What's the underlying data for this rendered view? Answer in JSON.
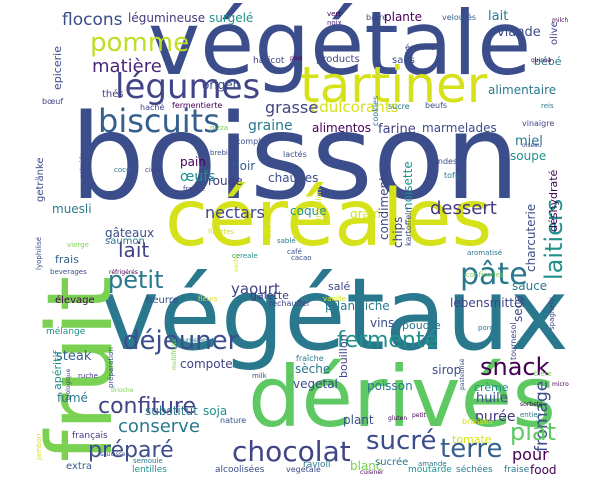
{
  "palette": {
    "navy": "#3b4d8a",
    "indigo": "#414487",
    "blue": "#355f8d",
    "teal": "#2a788e",
    "cyan": "#21918c",
    "green": "#22a884",
    "lime": "#7ad151",
    "yellow": "#d5e21a",
    "purple": "#482878",
    "dark": "#440154"
  },
  "words": {
    "boisson": "boisson",
    "vegetale": "végétale",
    "vegetaux": "végétaux",
    "cereales": "céréales",
    "derives": "dérivés",
    "fruit": "fruit",
    "tartiner": "tartiner",
    "legumes": "légumes",
    "biscuits": "biscuits",
    "pomme": "pomme",
    "matiere": "matière",
    "flocons": "flocons",
    "legumineuse": "légumineuse",
    "surgele": "surgelé",
    "vert": "vert",
    "noix": "noix",
    "barre": "barre",
    "plante": "plante",
    "veloutes": "veloutés",
    "lait_top": "lait",
    "viande": "viande",
    "olive": "olive",
    "bebe": "bébé",
    "alimentaire": "alimentaire",
    "edulcorants": "édulcorants",
    "grasse": "grasse",
    "graine": "graine",
    "alimentos": "alimentos",
    "farine": "farine",
    "marmelades": "marmelades",
    "miel": "miel",
    "soupe": "soupe",
    "petit": "petit",
    "lait": "lait",
    "nectars": "nectars",
    "dessert": "dessert",
    "laitiers": "laitiers",
    "pate": "pâte",
    "snack": "snack",
    "dejeuner": "déjeuner",
    "fermente": "fermenté",
    "fromage": "fromage",
    "confiture": "confiture",
    "conserve": "conserve",
    "prepare": "préparé",
    "chocolat": "chocolat",
    "sucre": "sucré",
    "terre": "terre",
    "plat": "plat",
    "pour": "pour",
    "yaourt": "yaourt",
    "pflanzliche": "pflanzliche",
    "sauce": "sauce",
    "charcuterie": "charcuterie",
    "lebensmittel": "lebensmittel",
    "gateaux": "gâteaux",
    "saumon": "saumon",
    "muesli": "muesli",
    "chaudes": "chaudes",
    "coque": "coque",
    "grain": "grain",
    "noisette": "noisette",
    "chips": "chips",
    "condiments": "condiments",
    "rouge": "rouge",
    "oeufs": "œufs",
    "noir": "noir",
    "pain": "pain",
    "origen": "origen",
    "thes": "thés",
    "epicerie": "epicerie",
    "steak": "steak",
    "compote": "compote",
    "soja": "soja",
    "substitut": "substitut",
    "fume": "fumé",
    "aperitif": "apéritif",
    "poisson": "poisson",
    "vegetal": "vegetal",
    "seche": "sèche",
    "huile": "huile",
    "puree": "purée",
    "creme": "crème",
    "sirop": "sirop",
    "secs": "secs",
    "deshydrate": "déshydraté",
    "bouillon": "bouillon",
    "vins": "vins",
    "poudre": "poudre",
    "sale": "salé",
    "galette": "galette",
    "beurre": "beurre",
    "elevage": "élevage",
    "frais": "frais",
    "getranke": "getränke",
    "plant": "plant",
    "blanc": "blanc",
    "tomate": "tomate",
    "food": "food",
    "fraise": "fraise",
    "ravioli": "ravioli",
    "lentilles": "lentilles",
    "extra": "extra",
    "francais": "français",
    "melange": "mélange",
    "mois": "mois",
    "sans": "sans",
    "ecreme": "écrémé",
    "haricot": "haricot",
    "products": "products",
    "cookies": "cookies",
    "boeuf": "bœuf",
    "hache": "haché",
    "fermentierte": "fermentierte",
    "sucre_small": "sucre",
    "beufs": "beufs",
    "complet": "complet",
    "cidre": "cidre",
    "coco": "coco",
    "france": "france",
    "brebis": "brebis",
    "lactes": "lactés",
    "pizza": "pizza",
    "ondes": "ondes",
    "tofu": "tofu",
    "vinaigre": "vinaigre",
    "reis": "reis",
    "oiseau": "oiseau",
    "cafe": "café",
    "cacao": "cacao",
    "vanille": "vanille",
    "rechauffer": "réchauffer",
    "confiseries": "confiseries",
    "aromatise": "aromatisé",
    "porc": "porc",
    "tournesol": "tournesol",
    "spaghetti": "spaghetti",
    "beverages": "beverages",
    "refrigeres": "réfrigérés",
    "vierge": "vierge",
    "lyophilise": "lyophilisé",
    "fleurs": "fleurs",
    "fillettes": "fillettes",
    "infusion": "infusion",
    "kartoffeln": "kartoffeln",
    "milk": "milk",
    "amande": "amande",
    "preparation": "préparation",
    "surgelees": "surgelées",
    "ruche": "ruche",
    "biere": "bière",
    "jambon": "jambon",
    "sorbets": "sorbets",
    "entier": "entier",
    "fraiche": "fraîche",
    "nature": "nature",
    "semoule": "semoule",
    "alcoolisees": "alcoolisées",
    "vegetale_small": "vegetale",
    "sucree": "sucrée",
    "moutarde": "moutarde",
    "sechees": "séchées",
    "sable": "sablé",
    "cereale": "cereale",
    "volaille": "volaille",
    "getreide": "getreide",
    "multifruits": "multifruits",
    "vache": "vache",
    "quinoa": "quinoa",
    "milch": "milch",
    "pois": "pois",
    "bebidas": "bebidas",
    "cuisiner": "cuisiner",
    "micro": "micro",
    "biologique": "biologique",
    "brioche": "brioche",
    "gluten": "gluten",
    "brasses": "brassés",
    "saucisse": "saucisse",
    "pasteurise": "pasteurisé",
    "petit_small": "petit"
  }
}
